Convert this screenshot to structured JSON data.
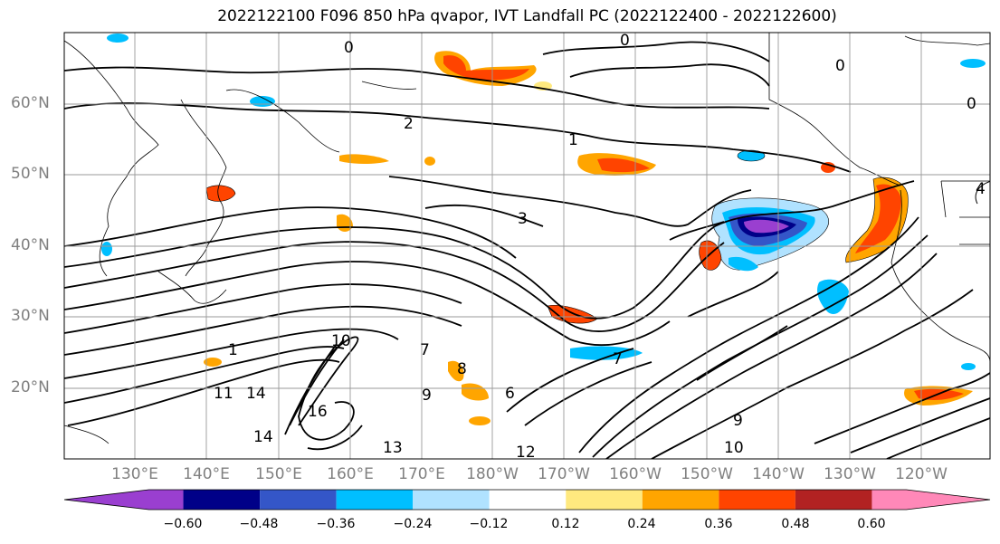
{
  "title": "2022122100 F096 850 hPa qvapor, IVT Landfall PC (2022122400 - 2022122600)",
  "lat_labels": [
    "60°N",
    "50°N",
    "40°N",
    "30°N",
    "20°N"
  ],
  "lon_labels": [
    "130°E",
    "140°E",
    "150°E",
    "160°E",
    "170°E",
    "180°W",
    "170°W",
    "160°W",
    "150°W",
    "140°W",
    "130°W",
    "120°W"
  ],
  "colorbar": {
    "ticks": [
      "−0.60",
      "−0.48",
      "−0.36",
      "−0.24",
      "−0.12",
      "0.12",
      "0.24",
      "0.36",
      "0.48",
      "0.60"
    ],
    "colors": [
      "#9a3fd0",
      "#000088",
      "#3456c8",
      "#00bfff",
      "#b0e2ff",
      "#ffffff",
      "#ffe97f",
      "#ffa500",
      "#ff4400",
      "#b22222",
      "#ff88b8"
    ]
  },
  "contour_labels": [
    "0",
    "0",
    "0",
    "0",
    "1",
    "1",
    "2",
    "3",
    "4",
    "6",
    "7",
    "7",
    "8",
    "9",
    "9",
    "10",
    "10",
    "11",
    "12",
    "13",
    "14",
    "14",
    "16"
  ]
}
